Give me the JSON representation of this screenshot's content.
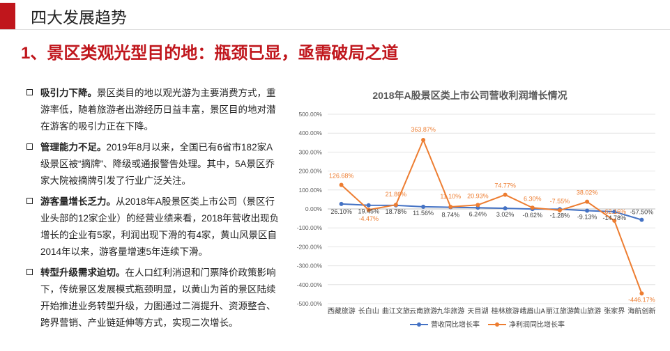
{
  "header": {
    "title": "四大发展趋势"
  },
  "main": {
    "heading": "1、景区类观光型目的地：瓶颈已显，亟需破局之道"
  },
  "bullets": [
    {
      "lead": "吸引力下降。",
      "text": "景区类目的地以观光游为主要消费方式，重游率低，随着旅游者出游经历日益丰富，景区目的地对潜在游客的吸引力正在下降。"
    },
    {
      "lead": "管理能力不足。",
      "text": "2019年8月以来，全国已有6省市182家A级景区被“摘牌”、降级或通报警告处理。其中，5A景区乔家大院被摘牌引发了行业广泛关注。"
    },
    {
      "lead": "游客量增长乏力。",
      "text": "从2018年A股景区类上市公司（景区行业头部的12家企业）的经营业绩来看，2018年营收出现负增长的企业有5家，利润出现下滑的有4家，黄山风景区自2014年以来，游客量增速5年连续下滑。"
    },
    {
      "lead": "转型升级需求迫切。",
      "text": "在人口红利消退和门票降价政策影响下，传统景区发展模式瓶颈明显，以黄山为首的景区陆续开始推进业务转型升级，力图通过二消提升、资源整合、跨界营销、产业链延伸等方式，实现二次增长。"
    }
  ],
  "chart_data": {
    "type": "line",
    "title": "2018年A股景区类上市公司营收利润增长情况",
    "categories": [
      "西藏旅游",
      "长白山",
      "曲江文旅",
      "云南旅游",
      "九华旅游",
      "天目湖",
      "桂林旅游",
      "峨眉山A",
      "丽江旅游",
      "黄山旅游",
      "张家界",
      "海航创新"
    ],
    "ylim": [
      -500,
      500
    ],
    "yticks": [
      500,
      400,
      300,
      200,
      100,
      0,
      -100,
      -200,
      -300,
      -400,
      -500
    ],
    "ytick_labels": [
      "500.00%",
      "400.00%",
      "300.00%",
      "200.00%",
      "100.00%",
      "0.00%",
      "-100.00%",
      "-200.00%",
      "-300.00%",
      "-400.00%",
      "-500.00%"
    ],
    "grid": true,
    "legend_position": "bottom",
    "series": [
      {
        "name": "营收同比增长率",
        "color": "#4472c4",
        "values": [
          26.1,
          19.45,
          18.78,
          11.56,
          8.74,
          6.24,
          3.02,
          -0.62,
          -1.28,
          -9.13,
          -14.78,
          -57.5
        ],
        "labels": [
          "26.10%",
          "19.45%",
          "18.78%",
          "11.56%",
          "8.74%",
          "6.24%",
          "3.02%",
          "-0.62%",
          "-1.28%",
          "-9.13%",
          "-14.78%",
          "-57.50%"
        ]
      },
      {
        "name": "净利润同比增长率",
        "color": "#ed7d31",
        "values": [
          126.68,
          -4.47,
          21.86,
          363.87,
          11.1,
          20.93,
          74.77,
          6.3,
          -7.55,
          38.02,
          -62.16,
          -446.17
        ],
        "labels": [
          "126.68%",
          "-4.47%",
          "21.86%",
          "363.87%",
          "11.10%",
          "20.93%",
          "74.77%",
          "6.30%",
          "-7.55%",
          "38.02%",
          "-62.16%",
          "-446.17%"
        ]
      }
    ]
  }
}
